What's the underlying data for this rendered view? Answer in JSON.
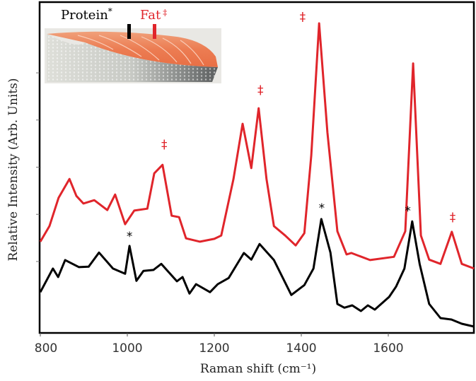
{
  "chart_data": {
    "type": "line",
    "title": "",
    "xlabel": "Raman shift (cm⁻¹)",
    "ylabel": "Relative Intensity (Arb. Units)",
    "xlim": [
      798,
      1797
    ],
    "ylim": [
      0,
      7
    ],
    "x_ticks": [
      800,
      1000,
      1200,
      1400,
      1600
    ],
    "x_tick_labels": [
      "800",
      "1000",
      "1200",
      "1400",
      "1600"
    ],
    "y_ticks_unlabeled": [
      1.5,
      2.5,
      3.5,
      4.5,
      5.5
    ],
    "grid": false,
    "series": [
      {
        "name": "Fat",
        "color": "#e0252b",
        "x": [
          800,
          821,
          842,
          867,
          883,
          899,
          924,
          954,
          972,
          995,
          1016,
          1046,
          1062,
          1081,
          1102,
          1119,
          1135,
          1167,
          1200,
          1216,
          1244,
          1265,
          1285,
          1302,
          1320,
          1337,
          1363,
          1387,
          1407,
          1423,
          1441,
          1460,
          1483,
          1504,
          1515,
          1558,
          1613,
          1639,
          1657,
          1675,
          1694,
          1720,
          1746,
          1769,
          1797
        ],
        "y": [
          1.92,
          2.25,
          2.85,
          3.25,
          2.89,
          2.73,
          2.8,
          2.59,
          2.92,
          2.29,
          2.58,
          2.62,
          3.37,
          3.55,
          2.47,
          2.44,
          1.99,
          1.92,
          1.98,
          2.05,
          3.25,
          4.42,
          3.48,
          4.75,
          3.25,
          2.25,
          2.05,
          1.84,
          2.1,
          3.75,
          6.55,
          4.24,
          2.14,
          1.65,
          1.68,
          1.53,
          1.6,
          2.14,
          5.7,
          2.05,
          1.54,
          1.45,
          2.13,
          1.45,
          1.35
        ]
      },
      {
        "name": "Protein",
        "color": "#000000",
        "x": [
          800,
          829,
          841,
          857,
          889,
          911,
          935,
          967,
          995,
          1005,
          1021,
          1037,
          1060,
          1078,
          1114,
          1127,
          1143,
          1158,
          1190,
          1208,
          1233,
          1268,
          1285,
          1304,
          1337,
          1377,
          1407,
          1428,
          1446,
          1467,
          1483,
          1499,
          1517,
          1537,
          1553,
          1569,
          1602,
          1618,
          1637,
          1655,
          1672,
          1694,
          1720,
          1745,
          1769,
          1797
        ],
        "y": [
          0.85,
          1.35,
          1.17,
          1.53,
          1.38,
          1.39,
          1.69,
          1.35,
          1.24,
          1.83,
          1.09,
          1.3,
          1.32,
          1.45,
          1.08,
          1.17,
          0.82,
          1.02,
          0.85,
          1.02,
          1.15,
          1.68,
          1.54,
          1.87,
          1.53,
          0.79,
          1.0,
          1.35,
          2.4,
          1.69,
          0.6,
          0.52,
          0.57,
          0.45,
          0.57,
          0.48,
          0.75,
          0.97,
          1.35,
          2.35,
          1.45,
          0.6,
          0.3,
          0.27,
          0.18,
          0.12
        ]
      }
    ],
    "annotations": [
      {
        "text": "‡",
        "x": 1085,
        "y": 3.9,
        "color": "#e0252b"
      },
      {
        "text": "‡",
        "x": 1306,
        "y": 5.05,
        "color": "#e0252b"
      },
      {
        "text": "‡",
        "x": 1403,
        "y": 6.6,
        "color": "#e0252b"
      },
      {
        "text": "‡",
        "x": 1748,
        "y": 2.35,
        "color": "#e0252b"
      },
      {
        "text": "*",
        "x": 1005,
        "y": 1.95,
        "color": "#000000"
      },
      {
        "text": "*",
        "x": 1447,
        "y": 2.55,
        "color": "#000000"
      },
      {
        "text": "*",
        "x": 1645,
        "y": 2.49,
        "color": "#000000"
      }
    ]
  },
  "inset": {
    "protein_label": "Protein",
    "protein_marker": "*",
    "fat_label": "Fat",
    "fat_marker": "‡",
    "protein_color": "#000000",
    "fat_color": "#e0252b",
    "image": "salmon-fillet-photo"
  }
}
